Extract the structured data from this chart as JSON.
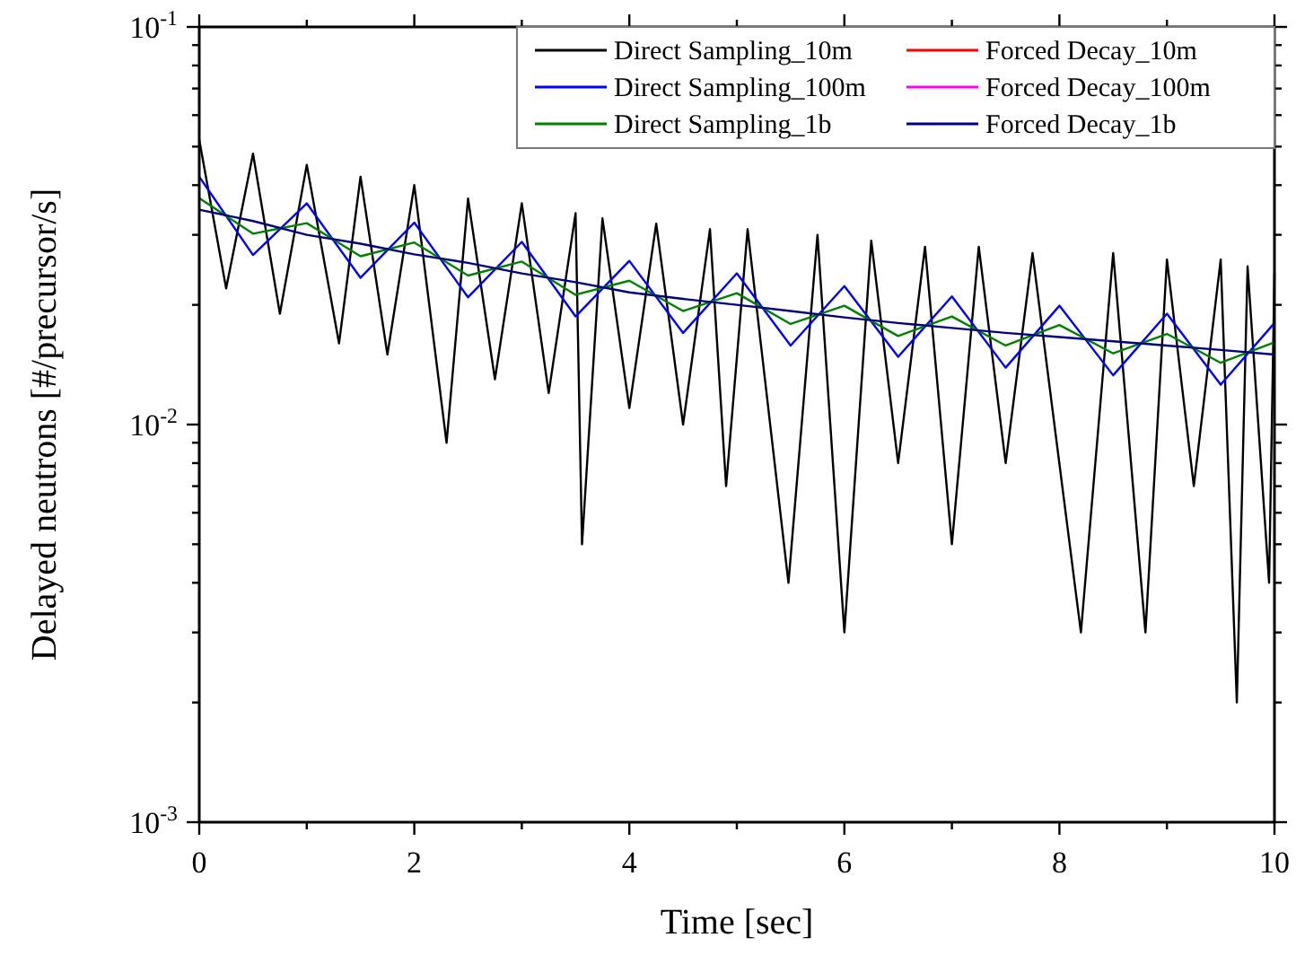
{
  "chart_data": {
    "type": "line",
    "xlabel": "Time [sec]",
    "ylabel": "Delayed neutrons [#/precursor/s]",
    "log": "y",
    "grid": false,
    "legend": "top right",
    "line_style": "solid",
    "marker": "none",
    "xlim": [
      0,
      10
    ],
    "ylim": [
      0.001,
      0.1
    ],
    "xticks": [
      0,
      {
        "value": 1,
        "label": null
      },
      2,
      {
        "value": 3,
        "label": null
      },
      4,
      {
        "value": 5,
        "label": null
      },
      6,
      {
        "value": 7,
        "label": null
      },
      8,
      {
        "value": 9,
        "label": null
      },
      10
    ],
    "yticks": [
      {
        "value": 0.001,
        "label": "10$^{-3}$"
      },
      {
        "value": 0.002,
        "label": null
      },
      {
        "value": 0.003,
        "label": null
      },
      {
        "value": 0.004,
        "label": null
      },
      {
        "value": 0.005,
        "label": null
      },
      {
        "value": 0.006,
        "label": null
      },
      {
        "value": 0.007,
        "label": null
      },
      {
        "value": 0.008,
        "label": null
      },
      {
        "value": 0.009,
        "label": null
      },
      {
        "value": 0.01,
        "label": "10$^{-2}$"
      },
      {
        "value": 0.02,
        "label": null
      },
      {
        "value": 0.03,
        "label": null
      },
      {
        "value": 0.04,
        "label": null
      },
      {
        "value": 0.05,
        "label": null
      },
      {
        "value": 0.06,
        "label": null
      },
      {
        "value": 0.07,
        "label": null
      },
      {
        "value": 0.08,
        "label": null
      },
      {
        "value": 0.09,
        "label": null
      },
      {
        "value": 0.1,
        "label": "10$^{-1}$"
      }
    ],
    "series": [
      {
        "name": "Direct Sampling_10m",
        "color": "#000000",
        "x": [
          0,
          0.25,
          0.5,
          0.75,
          1,
          1.3,
          1.5,
          1.75,
          2,
          2.3,
          2.5,
          2.75,
          3,
          3.25,
          3.5,
          3.56,
          3.75,
          4,
          4.25,
          4.5,
          4.75,
          4.9,
          5.1,
          5.48,
          5.75,
          6,
          6.25,
          6.5,
          6.75,
          7,
          7.25,
          7.5,
          7.75,
          8.2,
          8.5,
          8.8,
          9,
          9.25,
          9.5,
          9.65,
          9.75,
          9.95,
          10
        ],
        "values": [
          0.052,
          0.022,
          0.048,
          0.019,
          0.045,
          0.016,
          0.042,
          0.015,
          0.04,
          0.009,
          0.037,
          0.013,
          0.036,
          0.012,
          0.034,
          0.005,
          0.033,
          0.011,
          0.032,
          0.01,
          0.031,
          0.007,
          0.031,
          0.004,
          0.03,
          0.003,
          0.029,
          0.008,
          0.028,
          0.005,
          0.028,
          0.008,
          0.027,
          0.003,
          0.027,
          0.003,
          0.026,
          0.007,
          0.026,
          0.002,
          0.025,
          0.004,
          0.024
        ]
      },
      {
        "name": "Direct Sampling_100m",
        "color": "#0000ff",
        "x": [
          0,
          0.5,
          1,
          1.5,
          2,
          2.5,
          3,
          3.5,
          4,
          4.5,
          5,
          5.5,
          6,
          6.5,
          7,
          7.5,
          8,
          8.5,
          9,
          9.5,
          10
        ],
        "values": [
          0.042,
          0.0267,
          0.036,
          0.0234,
          0.0322,
          0.0209,
          0.0288,
          0.0187,
          0.0258,
          0.017,
          0.024,
          0.0158,
          0.0223,
          0.0148,
          0.021,
          0.0139,
          0.0199,
          0.0133,
          0.019,
          0.0126,
          0.018
        ]
      },
      {
        "name": "Direct Sampling_1b",
        "color": "#008000",
        "x": [
          0,
          0.5,
          1,
          1.5,
          2,
          2.5,
          3,
          3.5,
          4,
          4.5,
          5,
          5.5,
          6,
          6.5,
          7,
          7.5,
          8,
          8.5,
          9,
          9.5,
          10
        ],
        "values": [
          0.0371,
          0.0302,
          0.0321,
          0.0265,
          0.0287,
          0.0237,
          0.0257,
          0.0212,
          0.023,
          0.0193,
          0.0214,
          0.0179,
          0.0199,
          0.0167,
          0.0187,
          0.0158,
          0.0178,
          0.0151,
          0.0169,
          0.0143,
          0.0161
        ]
      },
      {
        "name": "Forced Decay_10m",
        "color": "#ff0000",
        "values": [
          null
        ]
      },
      {
        "name": "Forced Decay_100m",
        "color": "#ff00ff",
        "values": [
          null
        ]
      },
      {
        "name": "Forced Decay_1b",
        "color": "#000080",
        "x": [
          0,
          0.5,
          1,
          1.5,
          2,
          2.5,
          3,
          3.5,
          4,
          4.5,
          5,
          5.5,
          6,
          6.5,
          7,
          7.5,
          8,
          8.5,
          9,
          9.5,
          10
        ],
        "values": [
          0.0347,
          0.0325,
          0.03,
          0.0285,
          0.0268,
          0.0255,
          0.024,
          0.0228,
          0.0215,
          0.0207,
          0.02,
          0.0193,
          0.0186,
          0.018,
          0.0175,
          0.017,
          0.0166,
          0.0162,
          0.0158,
          0.0154,
          0.015
        ]
      }
    ]
  }
}
